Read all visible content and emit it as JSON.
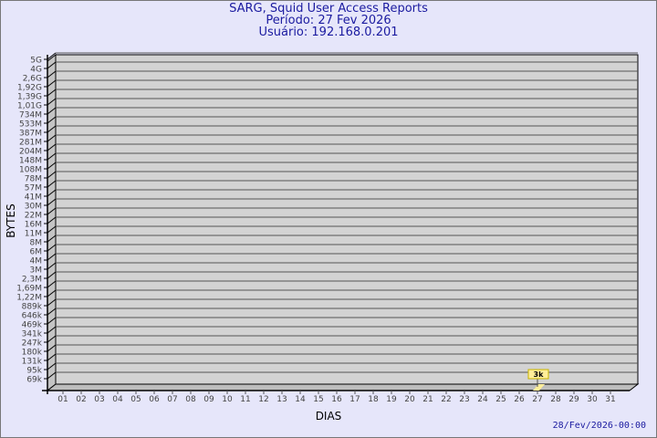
{
  "chart_data": {
    "type": "bar",
    "title": "SARG, Squid User Access Reports",
    "subtitle_period": "Período: 27 Fev 2026",
    "subtitle_user": "Usuário: 192.168.0.201",
    "xlabel": "DIAS",
    "ylabel": "BYTES",
    "y_scale": "log",
    "y_tick_labels": [
      "69k",
      "95k",
      "131k",
      "180k",
      "247k",
      "341k",
      "469k",
      "646k",
      "889k",
      "1,22M",
      "1,69M",
      "2,3M",
      "3M",
      "4M",
      "6M",
      "8M",
      "11M",
      "16M",
      "22M",
      "30M",
      "41M",
      "57M",
      "78M",
      "108M",
      "148M",
      "204M",
      "281M",
      "387M",
      "533M",
      "734M",
      "1,01G",
      "1,39G",
      "1,92G",
      "2,6G",
      "4G",
      "5G"
    ],
    "categories": [
      "01",
      "02",
      "03",
      "04",
      "05",
      "06",
      "07",
      "08",
      "09",
      "10",
      "11",
      "12",
      "13",
      "14",
      "15",
      "16",
      "17",
      "18",
      "19",
      "20",
      "21",
      "22",
      "23",
      "24",
      "25",
      "26",
      "27",
      "28",
      "29",
      "30",
      "31"
    ],
    "bars": [
      {
        "day": "27",
        "value_label": "3k"
      }
    ],
    "grid": true,
    "colors": {
      "background": "#e6e6fa",
      "plot": "#d3d3d3",
      "bar": "#ffee99",
      "text": "#1b1ba0"
    }
  },
  "footer": {
    "timestamp": "28/Fev/2026-00:00"
  }
}
